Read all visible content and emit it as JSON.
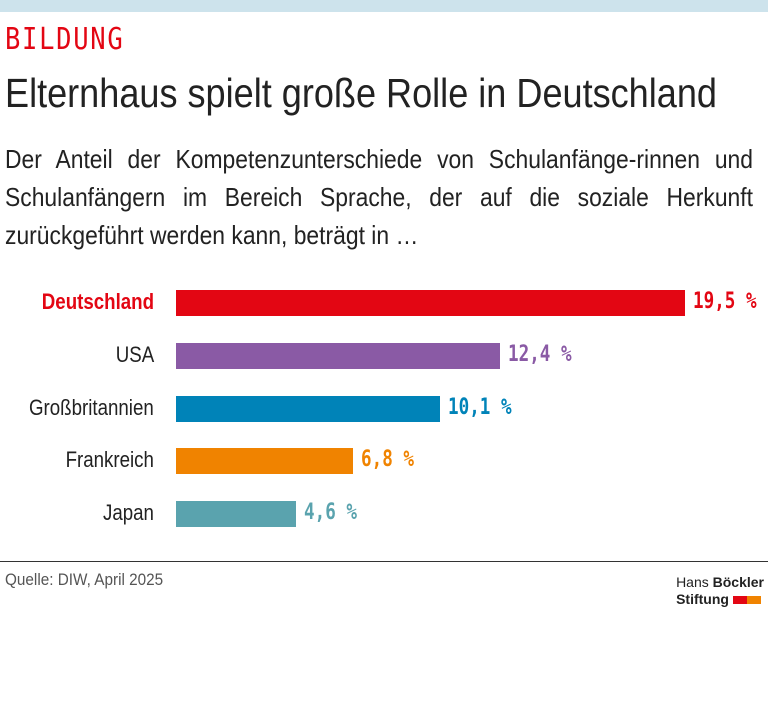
{
  "header": {
    "kicker": "BILDUNG",
    "title": "Elternhaus spielt große Rolle in Deutschland",
    "subtitle": "Der Anteil der Kompetenzunterschiede von Schulanfänge-rinnen und Schulanfängern im Bereich Sprache, der auf die soziale Herkunft zurückgeführt werden kann, beträgt in …"
  },
  "chart_data": {
    "type": "bar",
    "orientation": "horizontal",
    "categories": [
      "Deutschland",
      "USA",
      "Großbritannien",
      "Frankreich",
      "Japan"
    ],
    "values": [
      19.5,
      12.4,
      10.1,
      6.8,
      4.6
    ],
    "value_labels": [
      "19,5 %",
      "12,4 %",
      "10,1 %",
      "6,8 %",
      "4,6 %"
    ],
    "colors": [
      "#e30613",
      "#8a5aa5",
      "#0083b8",
      "#f08300",
      "#5aa3ae"
    ],
    "highlight": "Deutschland",
    "grid": false
  },
  "footer": {
    "source": "Quelle: DIW, April 2025",
    "logo_line1_a": "Hans ",
    "logo_line1_b": "Böckler",
    "logo_line2": "Stiftung",
    "logo_colors": [
      "#e30613",
      "#f08300"
    ]
  }
}
